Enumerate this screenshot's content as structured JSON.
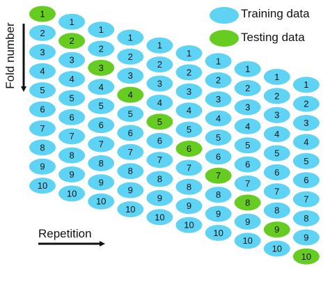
{
  "labels": {
    "fold_number": "Fold number",
    "repetition": "Repetition"
  },
  "legend": [
    {
      "label": "Training data",
      "color": "#5fd3f3"
    },
    {
      "label": "Testing data",
      "color": "#66cc22"
    }
  ],
  "colors": {
    "training": "#5fd3f3",
    "testing": "#66cc22",
    "text": "#111111"
  },
  "diagram": {
    "repetitions": 10,
    "folds": [
      "1",
      "2",
      "3",
      "4",
      "5",
      "6",
      "7",
      "8",
      "9",
      "10"
    ],
    "testing_fold_by_repetition": [
      1,
      2,
      3,
      4,
      5,
      6,
      7,
      8,
      9,
      10
    ]
  }
}
